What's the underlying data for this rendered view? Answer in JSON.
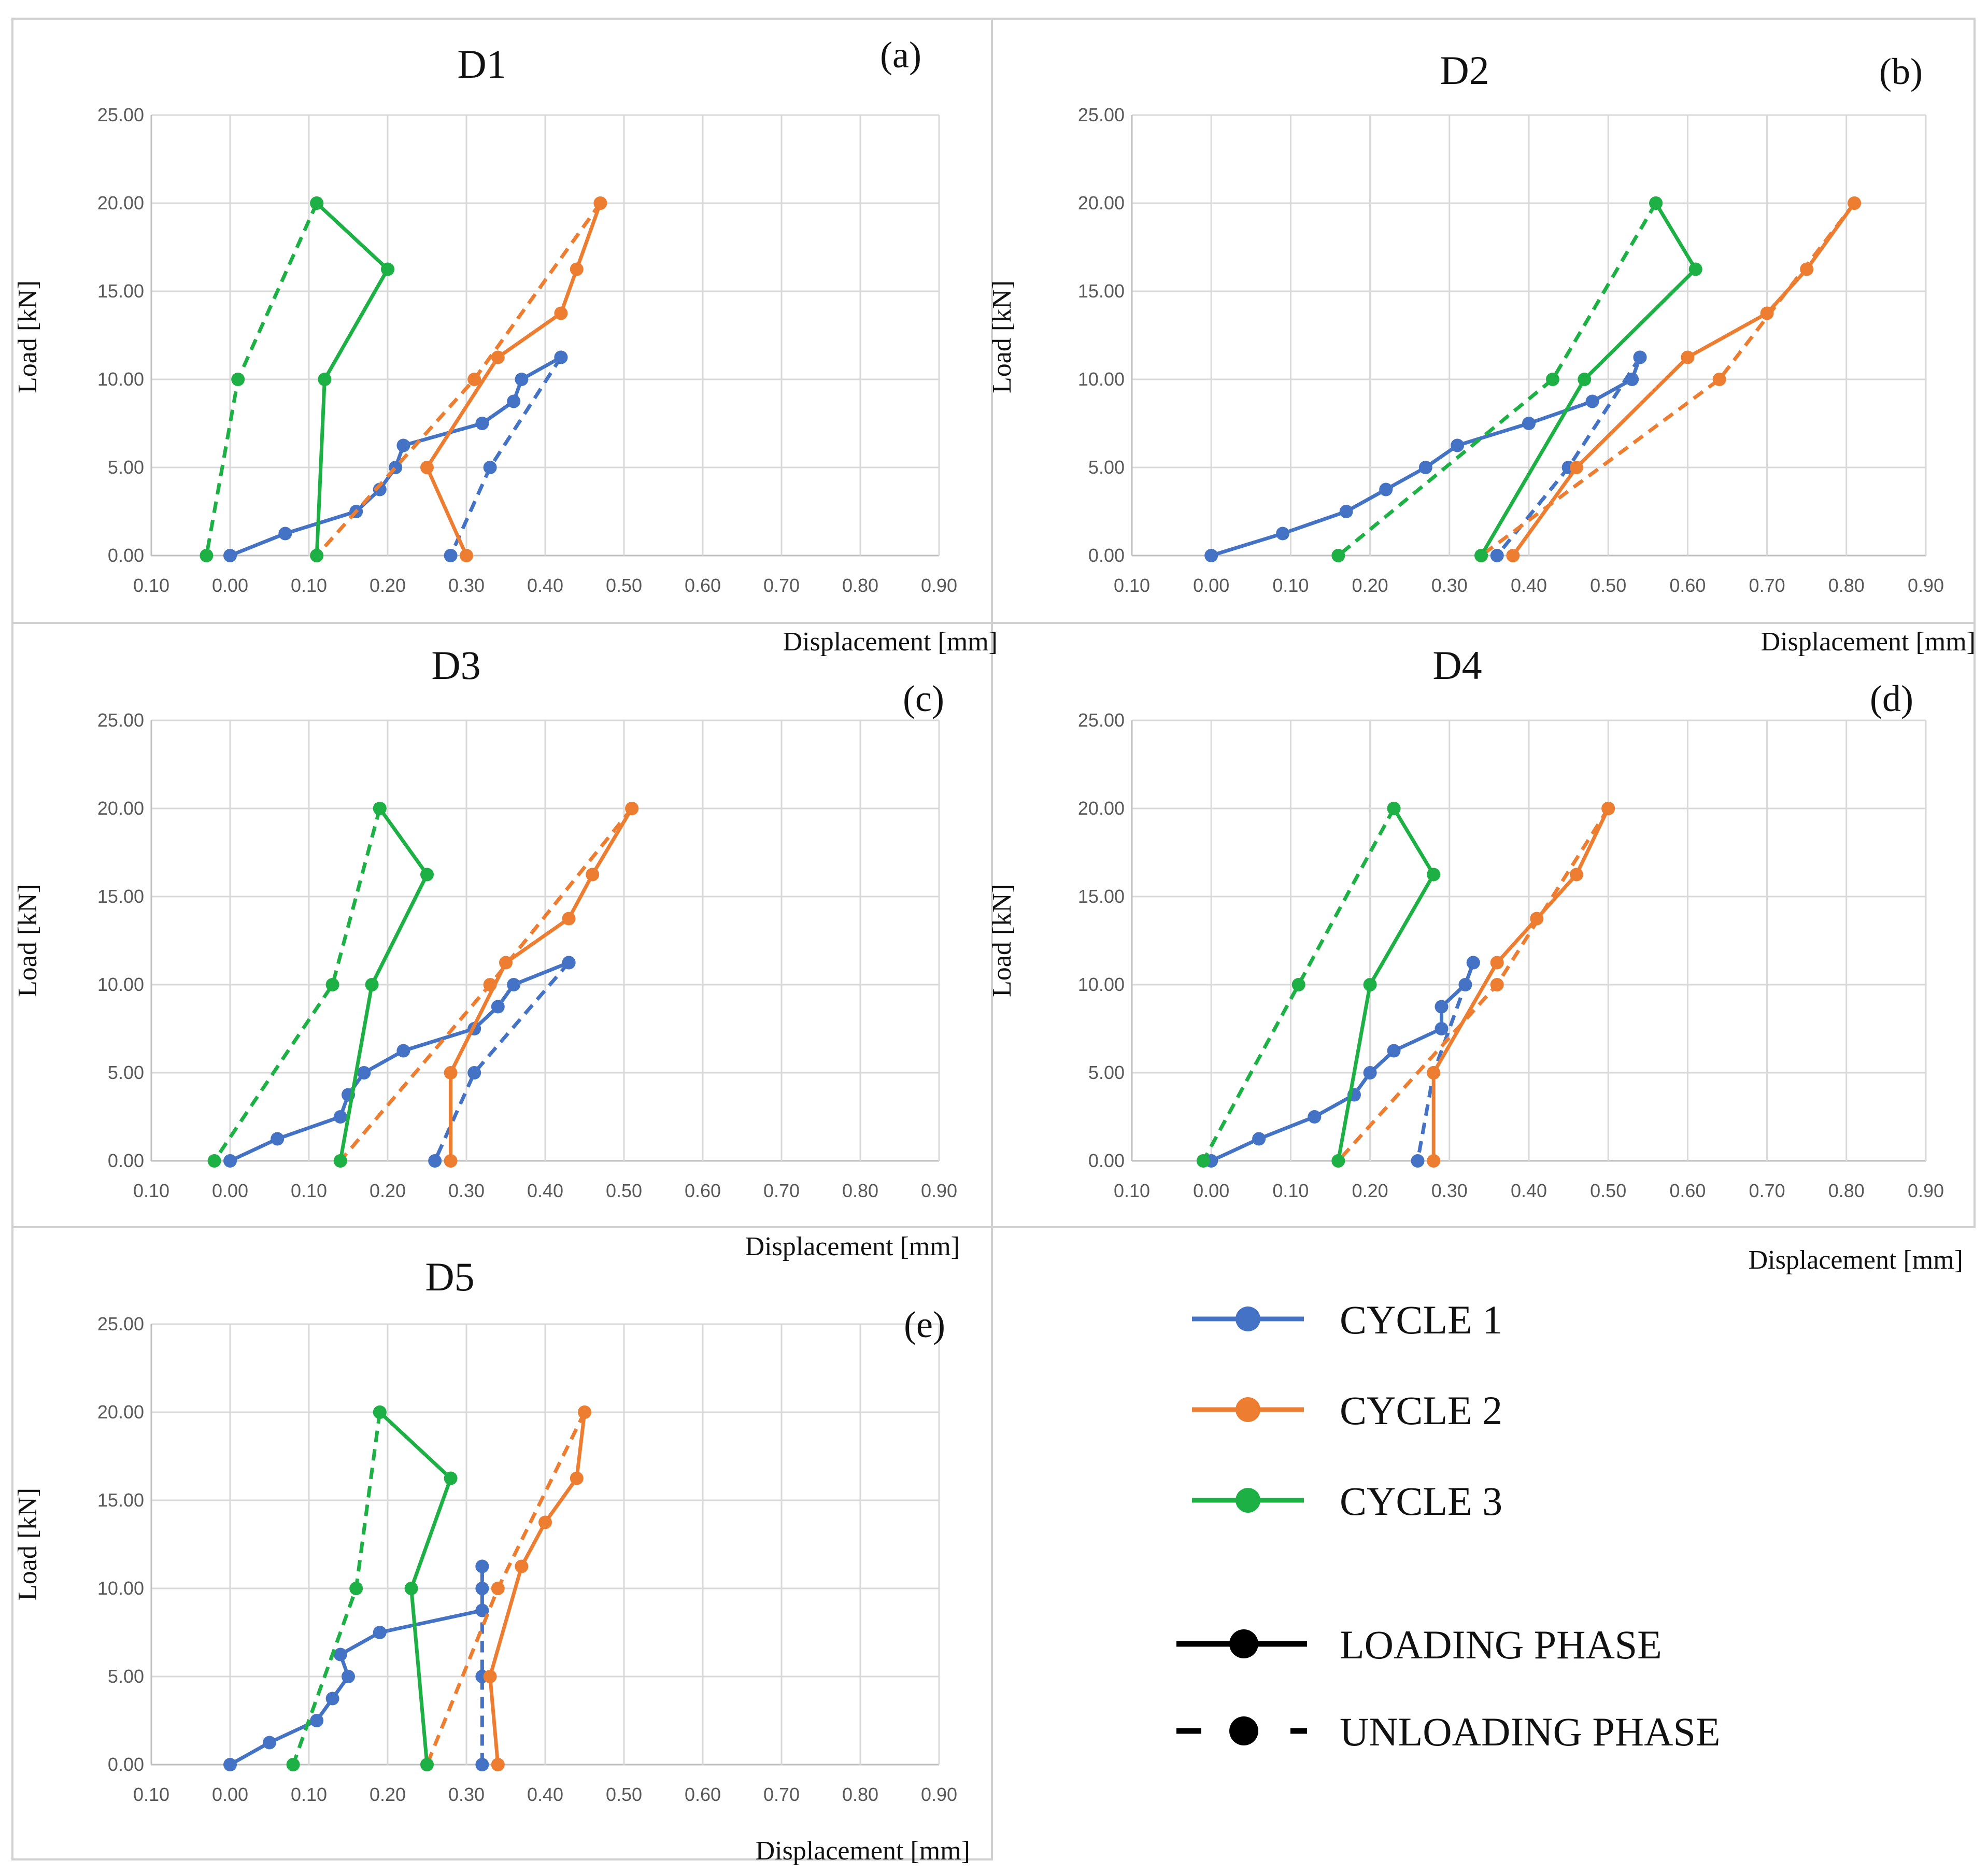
{
  "chart_data": {
    "panels": [
      {
        "type": "line",
        "title": "D1",
        "label": "(a)",
        "xlabel": "Displacement [mm]",
        "ylabel": "Load [kN]",
        "xlim": [
          -0.1,
          0.9
        ],
        "ylim": [
          0,
          25
        ],
        "x_ticks": [
          "0.10",
          "0.00",
          "0.10",
          "0.20",
          "0.30",
          "0.40",
          "0.50",
          "0.60",
          "0.70",
          "0.80",
          "0.90"
        ],
        "y_ticks": [
          "0.00",
          "5.00",
          "10.00",
          "15.00",
          "20.00",
          "25.00"
        ],
        "series": [
          {
            "name": "CYCLE 1",
            "phase": "loading",
            "x": [
              0,
              0.07,
              0.16,
              0.19,
              0.21,
              0.22,
              0.32,
              0.36,
              0.37,
              0.42
            ],
            "y": [
              0,
              1.25,
              2.5,
              3.75,
              5,
              6.25,
              7.5,
              8.75,
              10,
              11.25
            ]
          },
          {
            "name": "CYCLE 1",
            "phase": "unloading",
            "x": [
              0.42,
              0.33,
              0.28
            ],
            "y": [
              11.25,
              5,
              0
            ]
          },
          {
            "name": "CYCLE 2",
            "phase": "loading",
            "x": [
              0.3,
              0.25,
              0.34,
              0.42,
              0.44,
              0.47
            ],
            "y": [
              0,
              5,
              11.25,
              13.75,
              16.25,
              20
            ]
          },
          {
            "name": "CYCLE 2",
            "phase": "unloading",
            "x": [
              0.47,
              0.31,
              0.11
            ],
            "y": [
              20,
              10,
              0
            ]
          },
          {
            "name": "CYCLE 3",
            "phase": "loading",
            "x": [
              0.11,
              0.12,
              0.2,
              0.11
            ],
            "y": [
              0,
              10,
              16.25,
              20
            ]
          },
          {
            "name": "CYCLE 3",
            "phase": "unloading",
            "x": [
              0.11,
              0.01,
              -0.03
            ],
            "y": [
              20,
              10,
              0
            ]
          }
        ]
      },
      {
        "type": "line",
        "title": "D2",
        "label": "(b)",
        "xlabel": "Displacement [mm]",
        "ylabel": "Load [kN]",
        "xlim": [
          -0.1,
          0.9
        ],
        "ylim": [
          0,
          25
        ],
        "x_ticks": [
          "0.10",
          "0.00",
          "0.10",
          "0.20",
          "0.30",
          "0.40",
          "0.50",
          "0.60",
          "0.70",
          "0.80",
          "0.90"
        ],
        "y_ticks": [
          "0.00",
          "5.00",
          "10.00",
          "15.00",
          "20.00",
          "25.00"
        ],
        "series": [
          {
            "name": "CYCLE 1",
            "phase": "loading",
            "x": [
              0,
              0.09,
              0.17,
              0.22,
              0.27,
              0.31,
              0.4,
              0.48,
              0.53,
              0.54
            ],
            "y": [
              0,
              1.25,
              2.5,
              3.75,
              5,
              6.25,
              7.5,
              8.75,
              10,
              11.25
            ]
          },
          {
            "name": "CYCLE 1",
            "phase": "unloading",
            "x": [
              0.54,
              0.45,
              0.36
            ],
            "y": [
              11.25,
              5,
              0
            ]
          },
          {
            "name": "CYCLE 2",
            "phase": "loading",
            "x": [
              0.38,
              0.46,
              0.6,
              0.7,
              0.75,
              0.81
            ],
            "y": [
              0,
              5,
              11.25,
              13.75,
              16.25,
              20
            ]
          },
          {
            "name": "CYCLE 2",
            "phase": "unloading",
            "x": [
              0.81,
              0.64,
              0.34
            ],
            "y": [
              20,
              10,
              0
            ]
          },
          {
            "name": "CYCLE 3",
            "phase": "loading",
            "x": [
              0.34,
              0.47,
              0.61,
              0.56
            ],
            "y": [
              0,
              10,
              16.25,
              20
            ]
          },
          {
            "name": "CYCLE 3",
            "phase": "unloading",
            "x": [
              0.56,
              0.43,
              0.16
            ],
            "y": [
              20,
              10,
              0
            ]
          }
        ]
      },
      {
        "type": "line",
        "title": "D3",
        "label": "(c)",
        "xlabel": "Displacement [mm]",
        "ylabel": "Load [kN]",
        "xlim": [
          -0.1,
          0.9
        ],
        "ylim": [
          0,
          25
        ],
        "x_ticks": [
          "0.10",
          "0.00",
          "0.10",
          "0.20",
          "0.30",
          "0.40",
          "0.50",
          "0.60",
          "0.70",
          "0.80",
          "0.90"
        ],
        "y_ticks": [
          "0.00",
          "5.00",
          "10.00",
          "15.00",
          "20.00",
          "25.00"
        ],
        "series": [
          {
            "name": "CYCLE 1",
            "phase": "loading",
            "x": [
              0,
              0.06,
              0.14,
              0.15,
              0.17,
              0.22,
              0.31,
              0.34,
              0.36,
              0.43
            ],
            "y": [
              0,
              1.25,
              2.5,
              3.75,
              5,
              6.25,
              7.5,
              8.75,
              10,
              11.25
            ]
          },
          {
            "name": "CYCLE 1",
            "phase": "unloading",
            "x": [
              0.43,
              0.31,
              0.26
            ],
            "y": [
              11.25,
              5,
              0
            ]
          },
          {
            "name": "CYCLE 2",
            "phase": "loading",
            "x": [
              0.28,
              0.28,
              0.35,
              0.43,
              0.46,
              0.51
            ],
            "y": [
              0,
              5,
              11.25,
              13.75,
              16.25,
              20
            ]
          },
          {
            "name": "CYCLE 2",
            "phase": "unloading",
            "x": [
              0.51,
              0.33,
              0.14
            ],
            "y": [
              20,
              10,
              0
            ]
          },
          {
            "name": "CYCLE 3",
            "phase": "loading",
            "x": [
              0.14,
              0.18,
              0.25,
              0.19
            ],
            "y": [
              0,
              10,
              16.25,
              20
            ]
          },
          {
            "name": "CYCLE 3",
            "phase": "unloading",
            "x": [
              0.19,
              0.13,
              -0.02
            ],
            "y": [
              20,
              10,
              0
            ]
          }
        ]
      },
      {
        "type": "line",
        "title": "D4",
        "label": "(d)",
        "xlabel": "Displacement [mm]",
        "ylabel": "Load [kN]",
        "xlim": [
          -0.1,
          0.9
        ],
        "ylim": [
          0,
          25
        ],
        "x_ticks": [
          "0.10",
          "0.00",
          "0.10",
          "0.20",
          "0.30",
          "0.40",
          "0.50",
          "0.60",
          "0.70",
          "0.80",
          "0.90"
        ],
        "y_ticks": [
          "0.00",
          "5.00",
          "10.00",
          "15.00",
          "20.00",
          "25.00"
        ],
        "series": [
          {
            "name": "CYCLE 1",
            "phase": "loading",
            "x": [
              0,
              0.06,
              0.13,
              0.18,
              0.2,
              0.23,
              0.29,
              0.29,
              0.32,
              0.33
            ],
            "y": [
              0,
              1.25,
              2.5,
              3.75,
              5,
              6.25,
              7.5,
              8.75,
              10,
              11.25
            ]
          },
          {
            "name": "CYCLE 1",
            "phase": "unloading",
            "x": [
              0.33,
              0.28,
              0.26
            ],
            "y": [
              11.25,
              5,
              0
            ]
          },
          {
            "name": "CYCLE 2",
            "phase": "loading",
            "x": [
              0.28,
              0.28,
              0.36,
              0.41,
              0.46,
              0.5
            ],
            "y": [
              0,
              5,
              11.25,
              13.75,
              16.25,
              20
            ]
          },
          {
            "name": "CYCLE 2",
            "phase": "unloading",
            "x": [
              0.5,
              0.36,
              0.16
            ],
            "y": [
              20,
              10,
              0
            ]
          },
          {
            "name": "CYCLE 3",
            "phase": "loading",
            "x": [
              0.16,
              0.2,
              0.28,
              0.23
            ],
            "y": [
              0,
              10,
              16.25,
              20
            ]
          },
          {
            "name": "CYCLE 3",
            "phase": "unloading",
            "x": [
              0.23,
              0.11,
              -0.01
            ],
            "y": [
              20,
              10,
              0
            ]
          }
        ]
      },
      {
        "type": "line",
        "title": "D5",
        "label": "(e)",
        "xlabel": "Displacement [mm]",
        "ylabel": "Load [kN]",
        "xlim": [
          -0.1,
          0.9
        ],
        "ylim": [
          0,
          25
        ],
        "x_ticks": [
          "0.10",
          "0.00",
          "0.10",
          "0.20",
          "0.30",
          "0.40",
          "0.50",
          "0.60",
          "0.70",
          "0.80",
          "0.90"
        ],
        "y_ticks": [
          "0.00",
          "5.00",
          "10.00",
          "15.00",
          "20.00",
          "25.00"
        ],
        "series": [
          {
            "name": "CYCLE 1",
            "phase": "loading",
            "x": [
              0,
              0.05,
              0.11,
              0.13,
              0.15,
              0.14,
              0.19,
              0.32,
              0.32,
              0.32
            ],
            "y": [
              0,
              1.25,
              2.5,
              3.75,
              5,
              6.25,
              7.5,
              8.75,
              10,
              11.25
            ]
          },
          {
            "name": "CYCLE 1",
            "phase": "unloading",
            "x": [
              0.32,
              0.32,
              0.32
            ],
            "y": [
              11.25,
              5,
              0
            ]
          },
          {
            "name": "CYCLE 2",
            "phase": "loading",
            "x": [
              0.34,
              0.33,
              0.37,
              0.4,
              0.44,
              0.45
            ],
            "y": [
              0,
              5,
              11.25,
              13.75,
              16.25,
              20
            ]
          },
          {
            "name": "CYCLE 2",
            "phase": "unloading",
            "x": [
              0.45,
              0.34,
              0.25
            ],
            "y": [
              20,
              10,
              0
            ]
          },
          {
            "name": "CYCLE 3",
            "phase": "loading",
            "x": [
              0.25,
              0.23,
              0.28,
              0.19
            ],
            "y": [
              0,
              10,
              16.25,
              20
            ]
          },
          {
            "name": "CYCLE 3",
            "phase": "unloading",
            "x": [
              0.19,
              0.16,
              0.08
            ],
            "y": [
              20,
              10,
              0
            ]
          }
        ]
      }
    ],
    "legend": {
      "cycles": [
        {
          "name": "CYCLE 1",
          "color": "#4472C4"
        },
        {
          "name": "CYCLE 2",
          "color": "#ED7D31"
        },
        {
          "name": "CYCLE 3",
          "color": "#1DB045"
        }
      ],
      "phases": [
        {
          "name": "LOADING PHASE",
          "style": "solid"
        },
        {
          "name": "UNLOADING PHASE",
          "style": "dashed"
        }
      ]
    }
  }
}
